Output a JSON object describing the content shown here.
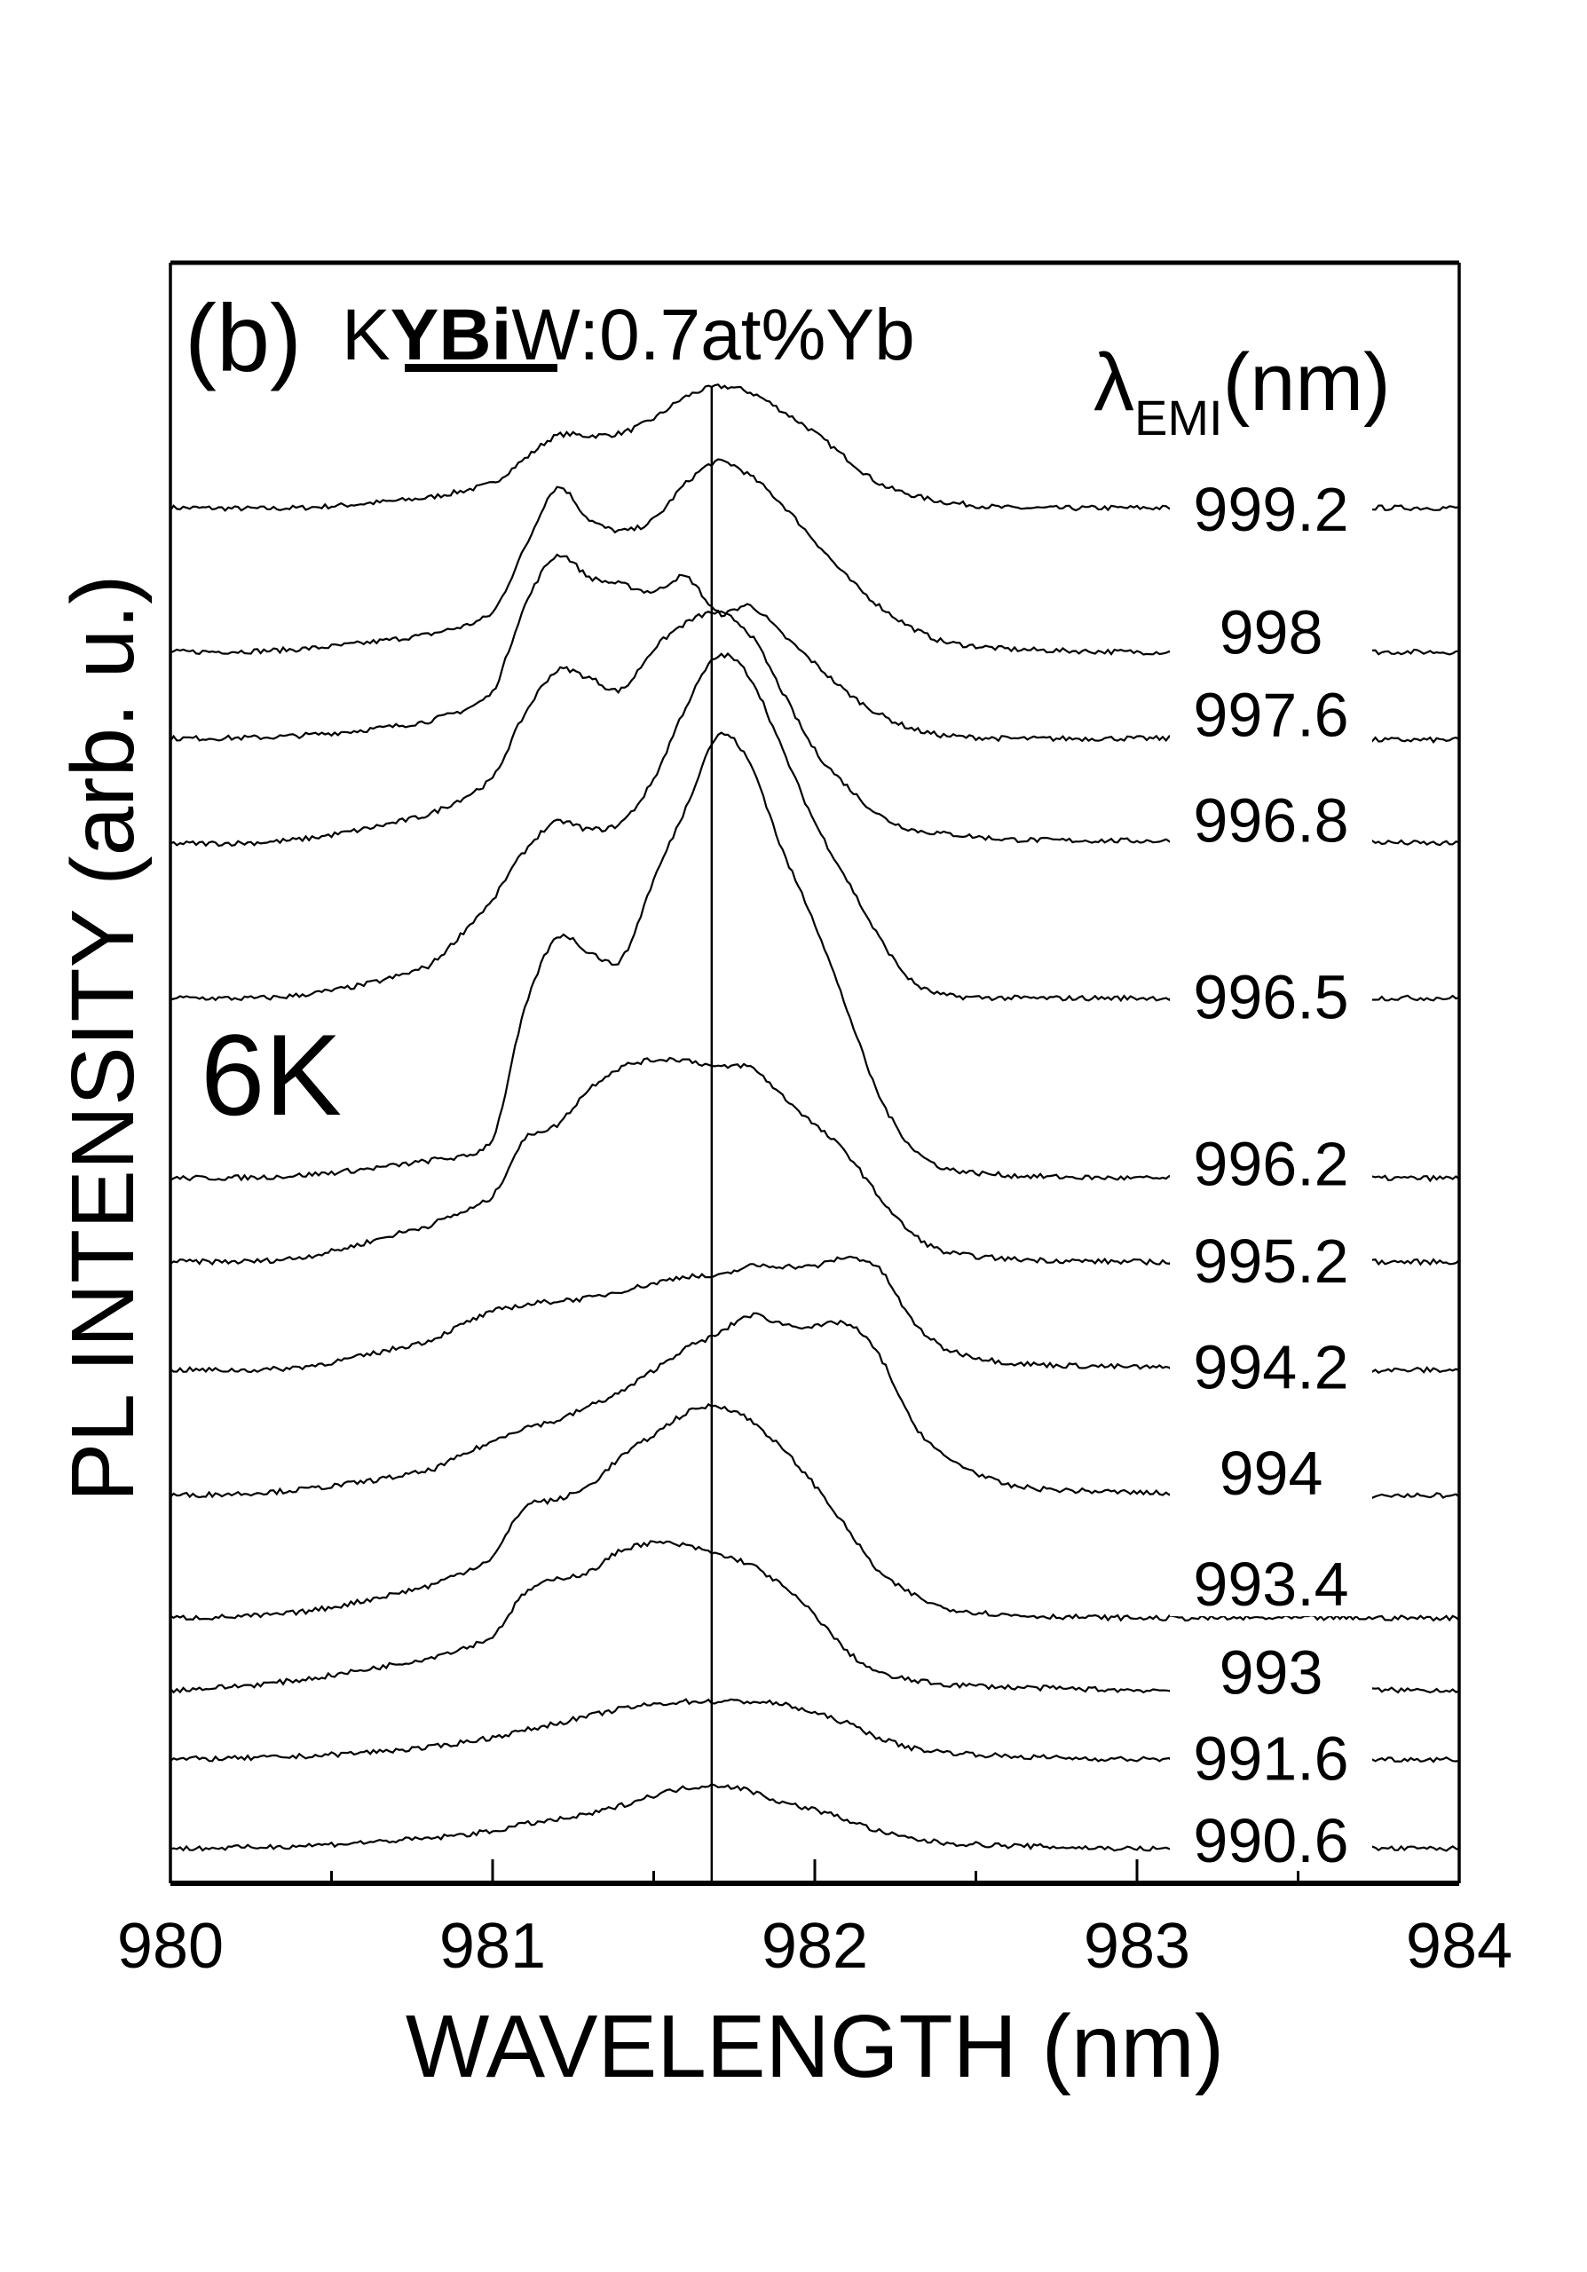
{
  "chart_data": {
    "type": "line",
    "panel_label": "(b)",
    "title_parts": {
      "pre": "K",
      "underlined": "YBi",
      "post": "W:0.7at%Yb"
    },
    "temperature_label": "6K",
    "legend_header": {
      "symbol": "λ",
      "subscript": "EMI",
      "unit": "(nm)"
    },
    "xlabel": "WAVELENGTH (nm)",
    "ylabel": "PL INTENSITY (arb. u.)",
    "xlim": [
      980,
      984
    ],
    "ylim": [
      0,
      112.4
    ],
    "xticks": [
      "980",
      "981",
      "982",
      "983",
      "984"
    ],
    "minor_xticks": [
      980.5,
      981.5,
      982.5,
      983.5
    ],
    "reference_line_x": 981.68,
    "stacked_offset": true,
    "x": [
      980,
      980.4,
      980.8,
      981,
      981.1,
      981.2,
      981.3,
      981.4,
      981.5,
      981.6,
      981.7,
      981.8,
      981.9,
      982,
      982.1,
      982.2,
      982.3,
      982.4,
      982.6,
      983,
      983.5,
      984
    ],
    "series": [
      {
        "name": "999.2",
        "values": [
          95.4,
          95.4,
          96.1,
          97.1,
          98.8,
          100.4,
          100.4,
          100.6,
          101.6,
          103.1,
          103.8,
          103.4,
          102.1,
          100.6,
          98.8,
          97.1,
          96.3,
          95.8,
          95.4,
          95.4,
          95.4,
          95.4
        ]
      },
      {
        "name": "998",
        "values": [
          85.4,
          85.6,
          86.6,
          88.1,
          92.6,
          96.8,
          94.6,
          93.8,
          94.6,
          97.1,
          98.6,
          97.6,
          95.6,
          93.1,
          90.6,
          88.6,
          87.1,
          86.1,
          85.6,
          85.4,
          85.4,
          85.4
        ]
      },
      {
        "name": "997.6",
        "values": [
          79.4,
          79.6,
          80.6,
          82.6,
          88.6,
          92.1,
          90.6,
          90.1,
          89.6,
          90.6,
          88.1,
          88.6,
          86.6,
          84.6,
          82.6,
          81.1,
          80.1,
          79.6,
          79.4,
          79.4,
          79.3,
          79.3
        ]
      },
      {
        "name": "996.8",
        "values": [
          72.1,
          72.4,
          74.1,
          76.6,
          81.1,
          84.1,
          83.6,
          82.8,
          85.6,
          87.4,
          88.1,
          86.6,
          82.6,
          78.6,
          76.1,
          74.1,
          73.1,
          72.8,
          72.4,
          72.3,
          72.3,
          72.1
        ]
      },
      {
        "name": "996.5",
        "values": [
          61.4,
          61.6,
          63.6,
          68.1,
          71.6,
          73.6,
          73.1,
          73.6,
          76.6,
          81.6,
          85.1,
          83.6,
          78.6,
          73.6,
          69.6,
          65.6,
          62.6,
          61.6,
          61.4,
          61.4,
          61.4,
          61.4
        ]
      },
      {
        "name": "996.2",
        "values": [
          48.9,
          49.1,
          50.1,
          51.6,
          60.6,
          65.6,
          64.6,
          64.1,
          69.6,
          74.6,
          79.6,
          77.6,
          71.6,
          66.6,
          60.6,
          54.6,
          51.1,
          49.6,
          49.1,
          48.9,
          48.9,
          48.9
        ]
      },
      {
        "name": "995.2",
        "values": [
          43.1,
          43.4,
          45.6,
          47.6,
          51.6,
          52.6,
          55.1,
          56.6,
          57.1,
          57.1,
          56.6,
          56.6,
          54.6,
          52.6,
          50.6,
          47.6,
          45.1,
          43.8,
          43.3,
          43.1,
          43.1,
          43.1
        ]
      },
      {
        "name": "994.2",
        "values": [
          35.6,
          35.8,
          37.6,
          39.6,
          40.1,
          40.4,
          40.6,
          41.1,
          41.6,
          42.1,
          42.1,
          42.8,
          42.8,
          42.8,
          43.4,
          42.6,
          39.1,
          37.1,
          36.1,
          35.8,
          35.6,
          35.6
        ]
      },
      {
        "name": "994",
        "values": [
          26.9,
          27.3,
          28.6,
          30.6,
          31.6,
          32.1,
          33.1,
          34.1,
          35.6,
          37.1,
          38.1,
          39.4,
          38.8,
          38.6,
          38.8,
          36.6,
          32.1,
          29.6,
          27.6,
          27.1,
          26.9,
          26.9
        ]
      },
      {
        "name": "993.4",
        "values": [
          18.4,
          18.8,
          20.6,
          22.6,
          26.1,
          26.6,
          27.6,
          29.6,
          31.1,
          32.6,
          33.1,
          32.1,
          30.1,
          27.6,
          24.6,
          21.6,
          20.1,
          19.1,
          18.6,
          18.4,
          18.4,
          18.4
        ]
      },
      {
        "name": "993",
        "values": [
          13.4,
          14.1,
          15.6,
          17.1,
          20.1,
          21.1,
          21.6,
          23.1,
          23.6,
          23.4,
          22.8,
          22.1,
          20.6,
          18.6,
          16.1,
          14.6,
          14.1,
          13.8,
          13.6,
          13.4,
          13.4,
          13.4
        ]
      },
      {
        "name": "991.6",
        "values": [
          8.6,
          8.8,
          9.4,
          10.1,
          10.6,
          11.1,
          11.6,
          12.1,
          12.4,
          12.6,
          12.6,
          12.6,
          12.4,
          11.8,
          11.1,
          10.1,
          9.4,
          9.1,
          8.8,
          8.6,
          8.6,
          8.6
        ]
      },
      {
        "name": "990.6",
        "values": [
          2.4,
          2.6,
          3.1,
          3.6,
          4.1,
          4.4,
          4.8,
          5.4,
          6.1,
          6.6,
          6.8,
          6.4,
          5.6,
          5.1,
          4.4,
          3.6,
          3.1,
          2.8,
          2.6,
          2.4,
          2.4,
          2.4
        ]
      }
    ],
    "line_color": "#000000",
    "grid": false
  }
}
